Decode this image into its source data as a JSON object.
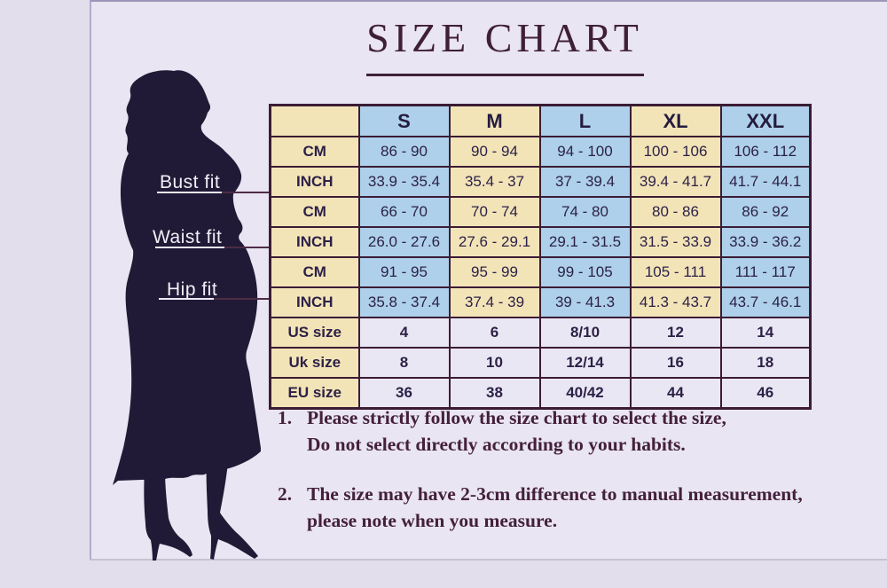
{
  "title": {
    "text": "SIZE CHART",
    "color": "#3f1e38"
  },
  "figure": {
    "silhouette": "woman-dress-silhouette",
    "labels": [
      {
        "text": "Bust fit"
      },
      {
        "text": "Waist fit"
      },
      {
        "text": "Hip fit"
      }
    ]
  },
  "size_table": {
    "columns": [
      "",
      "S",
      "M",
      "L",
      "XL",
      "XXL"
    ],
    "rows": [
      {
        "group": "bust",
        "label": "CM",
        "values": [
          "86 - 90",
          "90 - 94",
          "94 - 100",
          "100 - 106",
          "106 - 112"
        ]
      },
      {
        "group": "bust",
        "label": "INCH",
        "values": [
          "33.9 - 35.4",
          "35.4 - 37",
          "37 - 39.4",
          "39.4 - 41.7",
          "41.7 - 44.1"
        ]
      },
      {
        "group": "waist",
        "label": "CM",
        "values": [
          "66 - 70",
          "70 - 74",
          "74 - 80",
          "80 - 86",
          "86 - 92"
        ]
      },
      {
        "group": "waist",
        "label": "INCH",
        "values": [
          "26.0 - 27.6",
          "27.6 - 29.1",
          "29.1 - 31.5",
          "31.5 - 33.9",
          "33.9 - 36.2"
        ]
      },
      {
        "group": "hip",
        "label": "CM",
        "values": [
          "91 - 95",
          "95 - 99",
          "99 - 105",
          "105 - 111",
          "111 - 117"
        ]
      },
      {
        "group": "hip",
        "label": "INCH",
        "values": [
          "35.8 - 37.4",
          "37.4 - 39",
          "39 - 41.3",
          "41.3 - 43.7",
          "43.7 - 46.1"
        ]
      },
      {
        "group": "sizes",
        "label": "US size",
        "values": [
          "4",
          "6",
          "8/10",
          "12",
          "14"
        ]
      },
      {
        "group": "sizes",
        "label": "Uk size",
        "values": [
          "8",
          "10",
          "12/14",
          "16",
          "18"
        ]
      },
      {
        "group": "sizes",
        "label": "EU size",
        "values": [
          "36",
          "38",
          "40/42",
          "44",
          "46"
        ]
      }
    ],
    "colors": {
      "blue_cell": "#aed0eb",
      "cream_cell": "#f3e4b8",
      "plain_cell": "#eae7f4",
      "border": "#3b1c34"
    }
  },
  "notes": [
    {
      "num": "1.",
      "lines": [
        "Please strictly follow the size chart to select the size,",
        "Do not select directly according to your habits."
      ]
    },
    {
      "num": "2.",
      "lines": [
        "The size may have 2-3cm difference  to manual measurement,",
        "please note when you measure."
      ]
    }
  ],
  "theme": {
    "background": "#e2deeb",
    "panel_background": "#e9e5f2",
    "silhouette_color": "#201a36",
    "text_dark": "#3f1e38"
  }
}
